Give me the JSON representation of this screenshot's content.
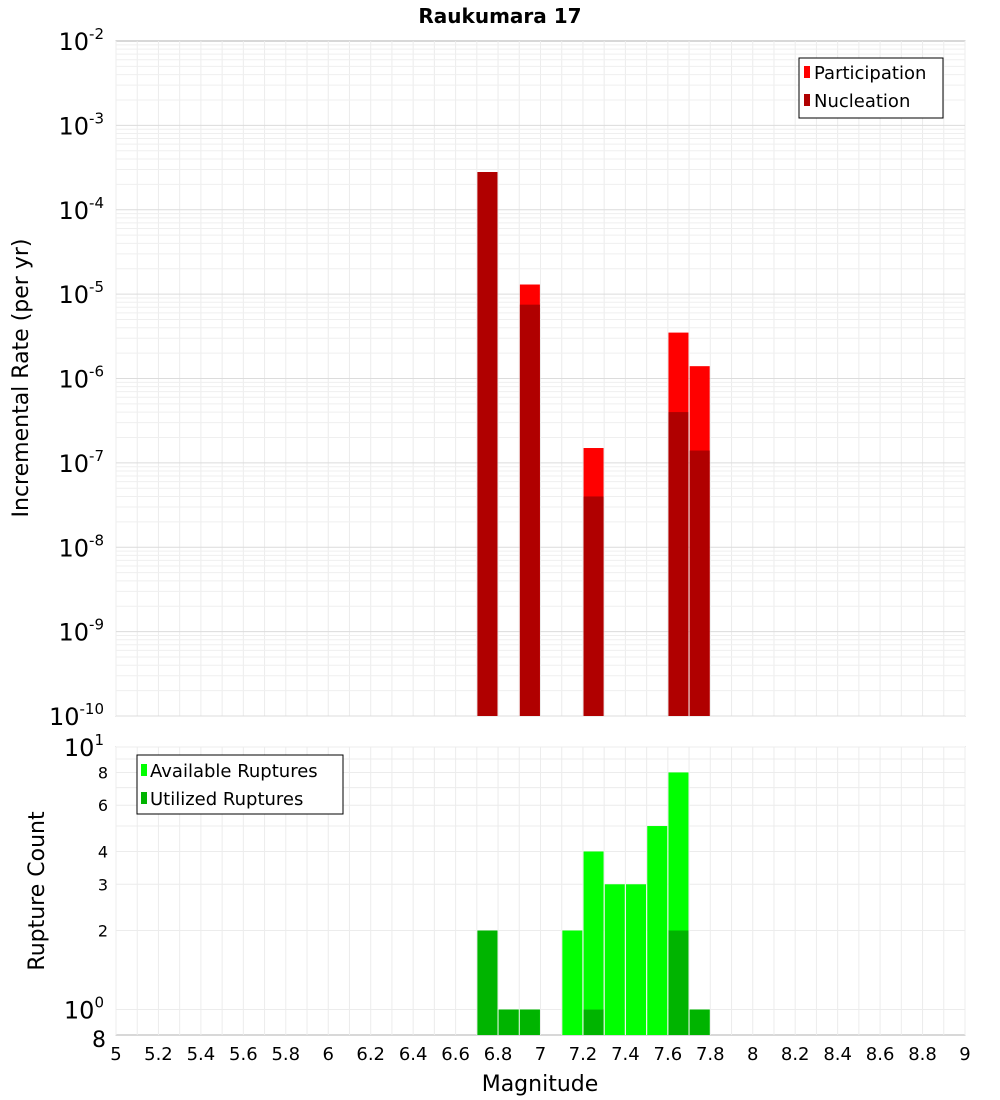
{
  "chart_data": [
    {
      "type": "bar",
      "title": "Raukumara 17",
      "ylabel": "Incremental Rate (per yr)",
      "y_scale": "log",
      "ylim": [
        1e-10,
        0.01
      ],
      "xlim": [
        5,
        9
      ],
      "y_tick_labels": [
        {
          "base": "10",
          "exp": "-2"
        },
        {
          "base": "10",
          "exp": "-3"
        },
        {
          "base": "10",
          "exp": "-4"
        },
        {
          "base": "10",
          "exp": "-5"
        },
        {
          "base": "10",
          "exp": "-6"
        },
        {
          "base": "10",
          "exp": "-7"
        },
        {
          "base": "10",
          "exp": "-8"
        },
        {
          "base": "10",
          "exp": "-9"
        },
        {
          "base": "10",
          "exp": "-10"
        }
      ],
      "legend_position": "top-right",
      "series": [
        {
          "name": "Participation",
          "color": "#ff0000",
          "x": [
            6.75,
            6.95,
            7.25,
            7.65,
            7.75
          ],
          "values": [
            0.00028,
            1.3e-05,
            1.5e-07,
            3.5e-06,
            1.4e-06
          ]
        },
        {
          "name": "Nucleation",
          "color": "#b00000",
          "x": [
            6.75,
            6.95,
            7.25,
            7.65,
            7.75
          ],
          "values": [
            0.00028,
            7.5e-06,
            4e-08,
            4e-07,
            1.4e-07
          ]
        }
      ],
      "grid": true
    },
    {
      "type": "bar",
      "ylabel": "Rupture Count",
      "xlabel": "Magnitude",
      "y_scale": "log",
      "ylim": [
        0.8,
        10
      ],
      "xlim": [
        5,
        9
      ],
      "x_ticks": [
        "5",
        "5.2",
        "5.4",
        "5.6",
        "5.8",
        "6",
        "6.2",
        "6.4",
        "6.6",
        "6.8",
        "7",
        "7.2",
        "7.4",
        "7.6",
        "7.8",
        "8",
        "8.2",
        "8.4",
        "8.6",
        "8.8",
        "9"
      ],
      "y_minor_tick_labels": [
        "8",
        "6",
        "4",
        "3",
        "2"
      ],
      "y_major_tick_labels": [
        {
          "base": "10",
          "exp": "1"
        },
        {
          "base": "10",
          "exp": "0"
        }
      ],
      "y_bottom_label": "8",
      "legend_position": "top-left",
      "series": [
        {
          "name": "Available Ruptures",
          "color": "#00ff00",
          "x": [
            6.75,
            6.85,
            6.95,
            7.15,
            7.25,
            7.35,
            7.45,
            7.55,
            7.65,
            7.75
          ],
          "values": [
            2,
            1,
            1,
            2,
            4,
            3,
            3,
            5,
            8,
            1
          ]
        },
        {
          "name": "Utilized Ruptures",
          "color": "#00b400",
          "x": [
            6.75,
            6.85,
            6.95,
            7.15,
            7.25,
            7.35,
            7.45,
            7.55,
            7.65,
            7.75
          ],
          "values": [
            2,
            1,
            1,
            0,
            1,
            0,
            0,
            0,
            2,
            1
          ]
        }
      ],
      "grid": true
    }
  ]
}
